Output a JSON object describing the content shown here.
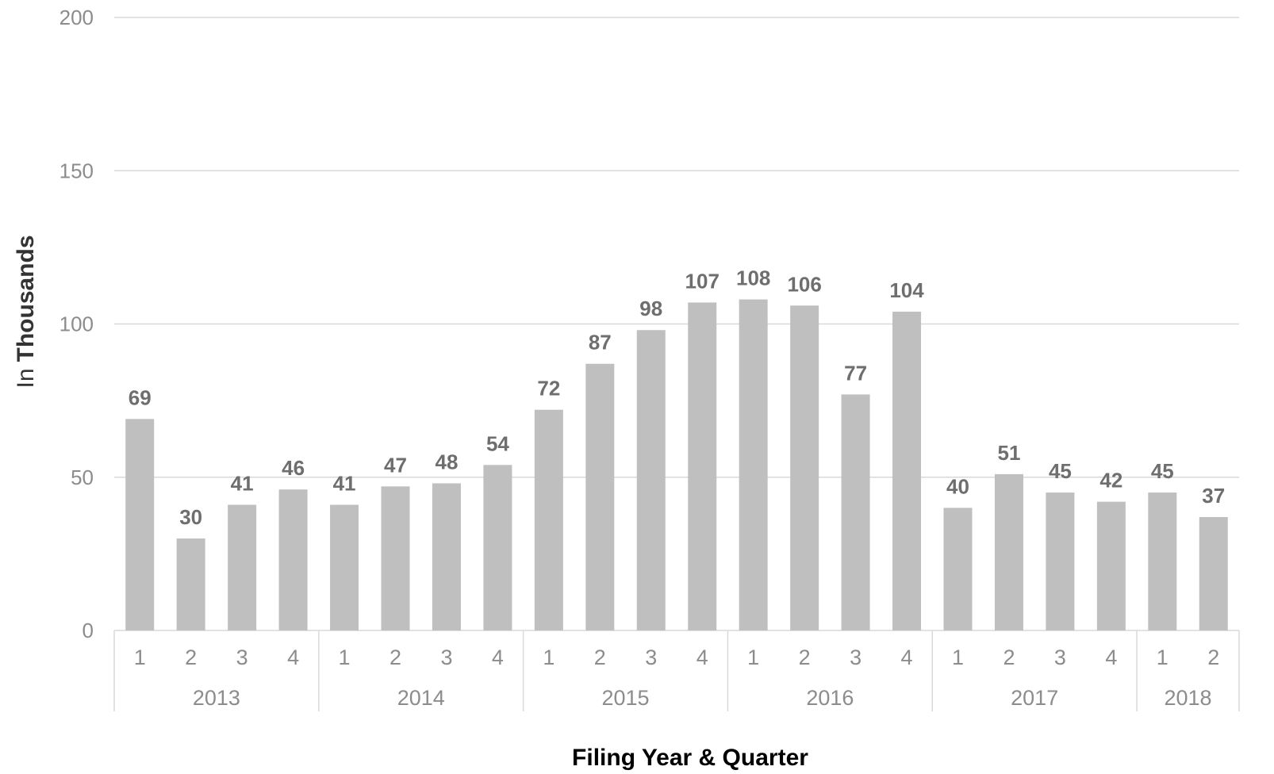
{
  "chart_data": {
    "type": "bar",
    "xlabel": "Filing Year & Quarter",
    "ylabel_prefix": "In",
    "ylabel_main": "Thousands",
    "ylim": [
      0,
      200
    ],
    "yticks": [
      0,
      50,
      100,
      150,
      200
    ],
    "grid": true,
    "colors": {
      "bar": "#bfbfbf",
      "grid": "#d9d9d9",
      "axis": "#d9d9d9",
      "label": "#6e6e6e",
      "tick": "#8c8c8c"
    },
    "groups": [
      {
        "year": "2013",
        "quarters": [
          "1",
          "2",
          "3",
          "4"
        ]
      },
      {
        "year": "2014",
        "quarters": [
          "1",
          "2",
          "3",
          "4"
        ]
      },
      {
        "year": "2015",
        "quarters": [
          "1",
          "2",
          "3",
          "4"
        ]
      },
      {
        "year": "2016",
        "quarters": [
          "1",
          "2",
          "3",
          "4"
        ]
      },
      {
        "year": "2017",
        "quarters": [
          "1",
          "2",
          "3",
          "4"
        ]
      },
      {
        "year": "2018",
        "quarters": [
          "1",
          "2"
        ]
      }
    ],
    "values": [
      69,
      30,
      41,
      46,
      41,
      47,
      48,
      54,
      72,
      87,
      98,
      107,
      108,
      106,
      77,
      104,
      40,
      51,
      45,
      42,
      45,
      37
    ]
  }
}
